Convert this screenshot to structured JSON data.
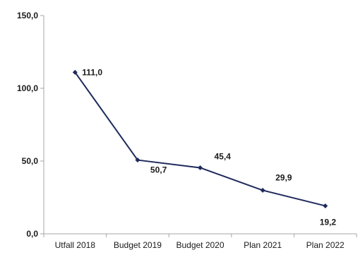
{
  "chart_data": {
    "type": "line",
    "categories": [
      "Utfall 2018",
      "Budget 2019",
      "Budget 2020",
      "Plan 2021",
      "Plan 2022"
    ],
    "series": [
      {
        "values": [
          111.0,
          50.7,
          45.4,
          29.9,
          19.2
        ],
        "value_labels": [
          "111,0",
          "50,7",
          "45,4",
          "29,9",
          "19,2"
        ],
        "color": "#1f2a5c"
      }
    ],
    "yticks": [
      0,
      50,
      100,
      150
    ],
    "ytick_labels": [
      "0,0",
      "50,0",
      "100,0",
      "150,0"
    ],
    "ylim": [
      0,
      150
    ],
    "grid": false,
    "axis_color": "#a6a6a6"
  }
}
